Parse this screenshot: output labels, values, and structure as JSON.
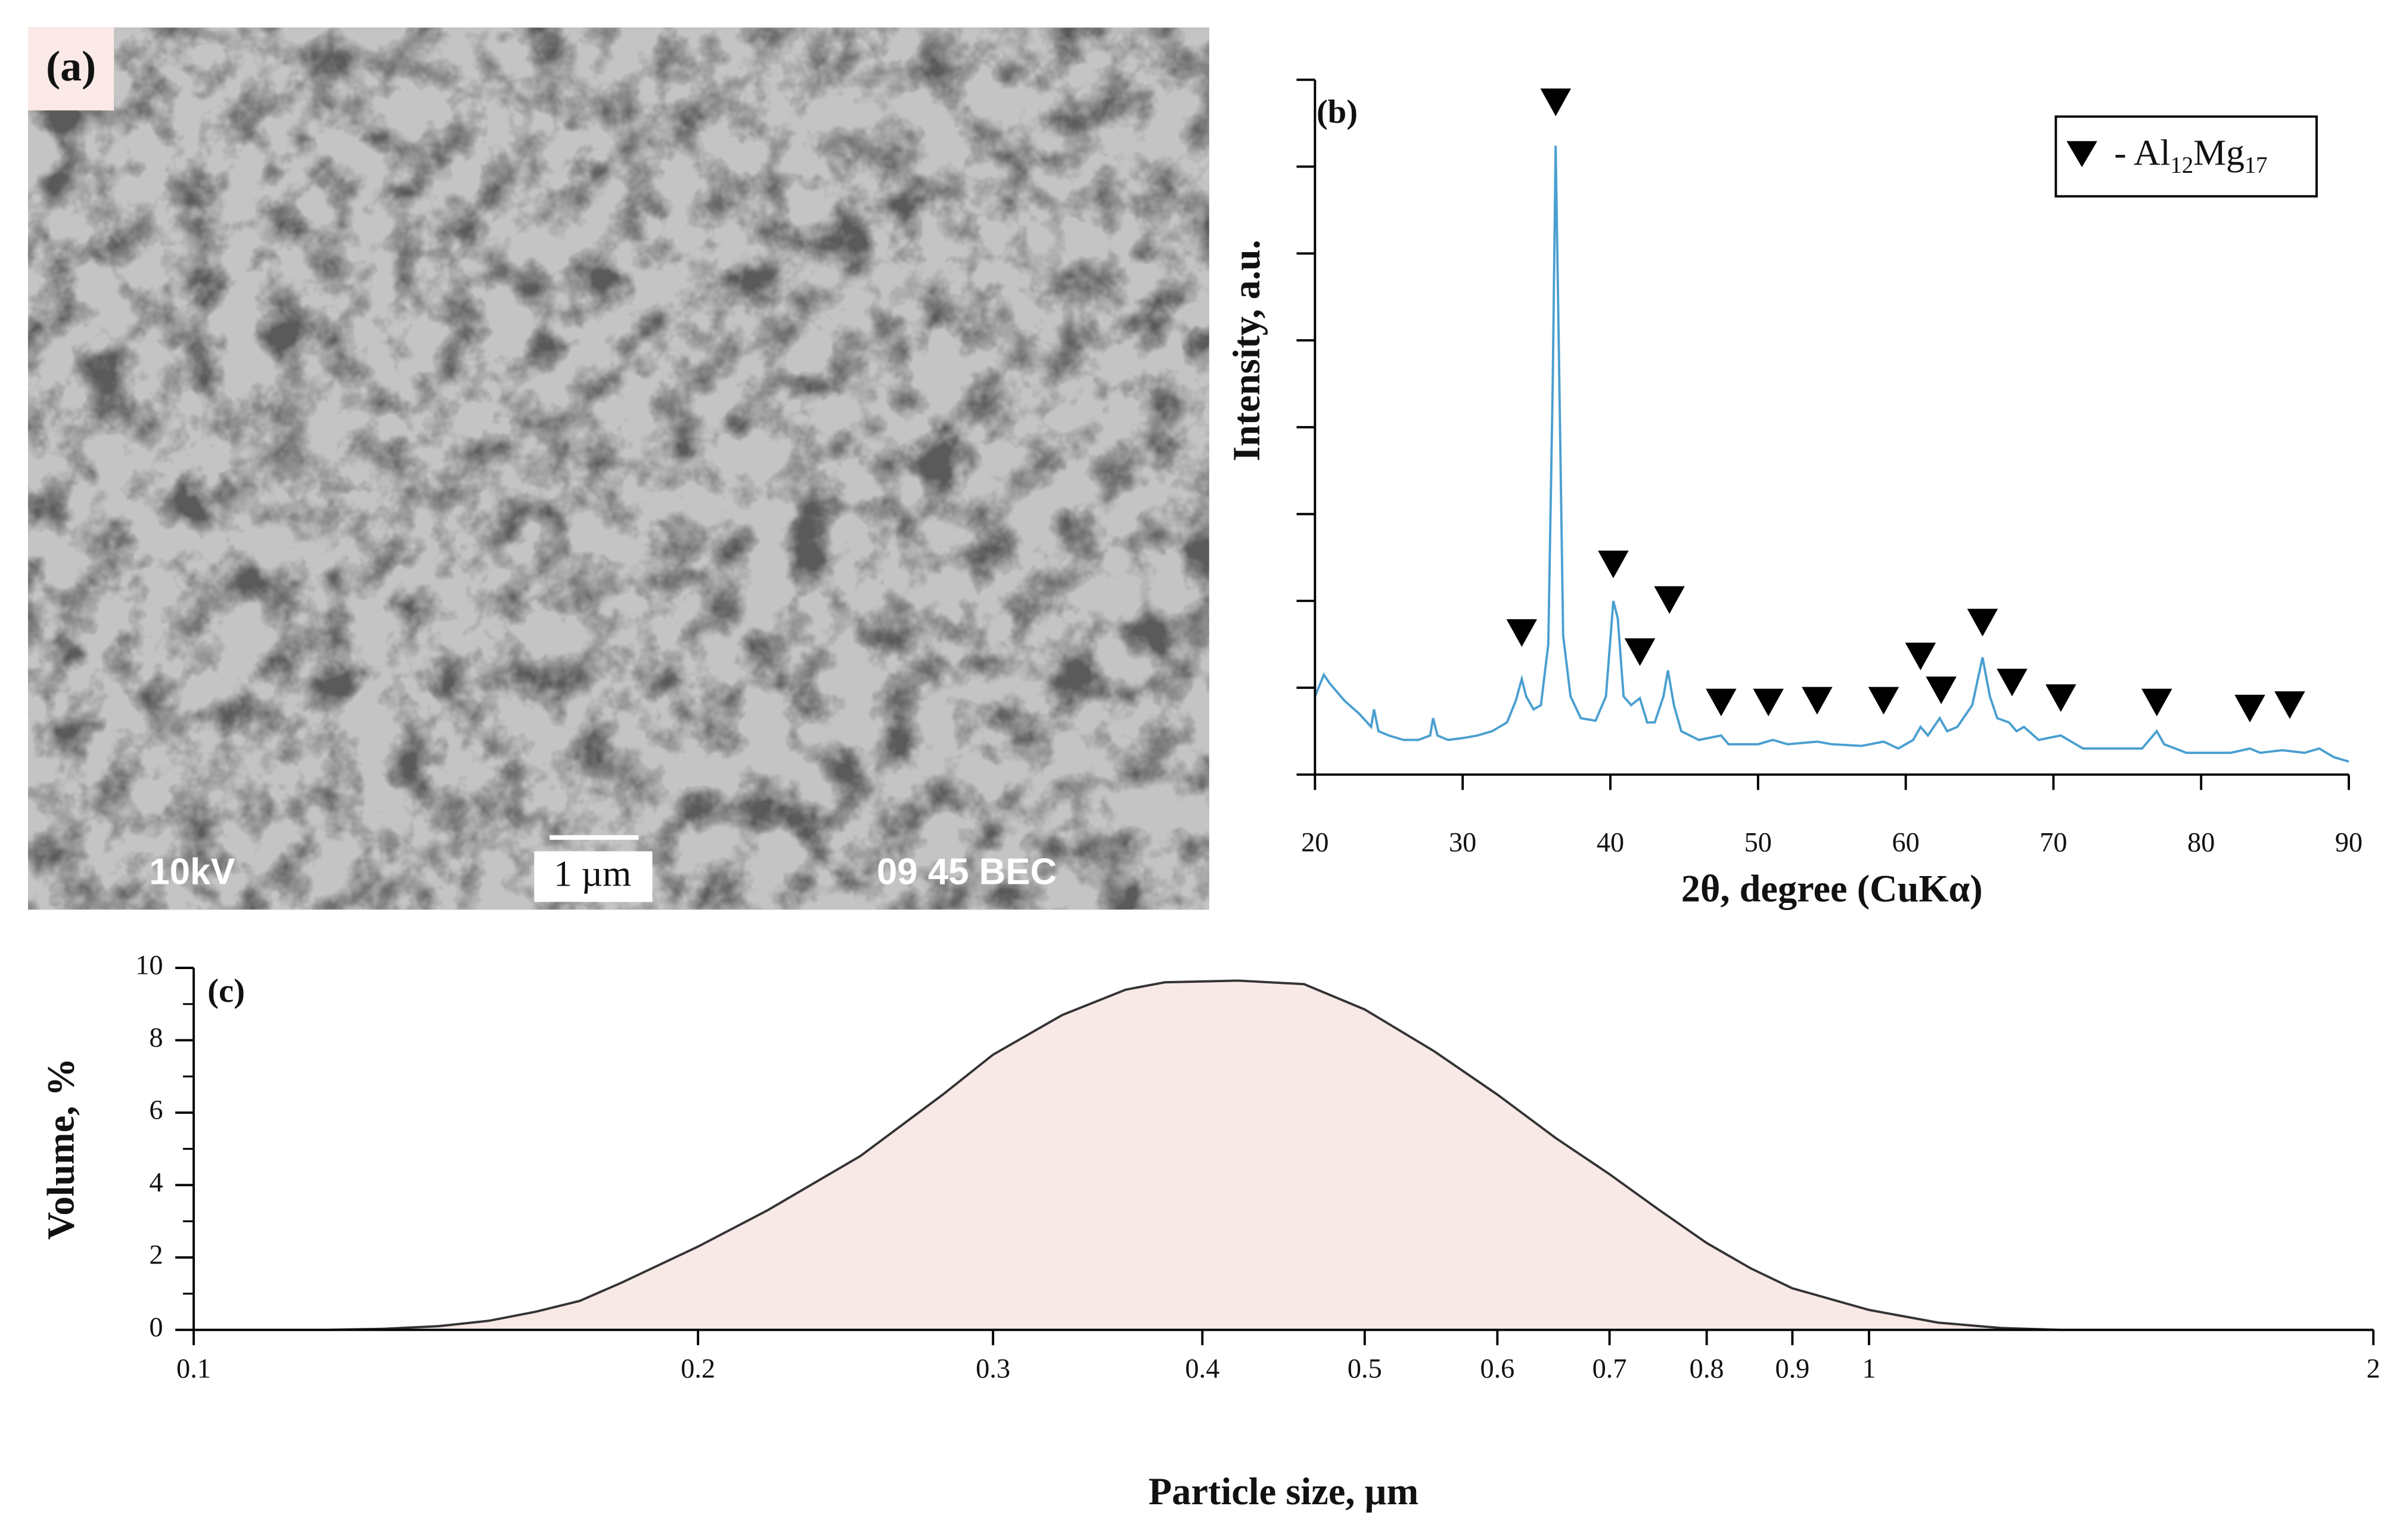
{
  "chart_data": [
    {
      "type": "image",
      "panel_label": "(a)",
      "annotations": [
        "10kV",
        "1 µm",
        "09 45 BEC"
      ]
    },
    {
      "type": "line",
      "panel_label": "(b)",
      "xlabel": "2θ, degree (CuKα)",
      "ylabel": "Intensity, a.u.",
      "xlim": [
        20,
        90
      ],
      "xticks": [
        20,
        30,
        40,
        50,
        60,
        70,
        80,
        90
      ],
      "ylim": [
        0,
        8
      ],
      "yticks": [
        0,
        1,
        2,
        3,
        4,
        5,
        6,
        7,
        8
      ],
      "ytick_labels": false,
      "x": [
        20,
        20.6,
        21,
        22,
        23,
        23.8,
        24,
        24.3,
        25,
        26,
        27,
        27.8,
        28,
        28.3,
        29,
        30,
        31,
        32,
        33,
        33.6,
        34,
        34.3,
        34.8,
        35.3,
        35.8,
        36.1,
        36.3,
        36.5,
        36.8,
        37.3,
        38,
        39,
        39.7,
        40.2,
        40.5,
        40.9,
        41.4,
        42,
        42.5,
        43,
        43.6,
        43.9,
        44.3,
        44.8,
        46,
        47.5,
        48,
        50,
        51,
        52,
        54,
        55,
        57,
        58.5,
        59.5,
        60.5,
        61,
        61.5,
        62.3,
        62.8,
        63.5,
        64.5,
        65.2,
        65.7,
        66.2,
        67,
        67.5,
        68,
        69,
        70.5,
        72,
        74,
        76,
        77,
        77.5,
        79,
        82,
        83.3,
        84,
        85.5,
        87,
        88,
        89,
        90
      ],
      "series": [
        {
          "color": "#4a9fd0",
          "values": [
            0.9,
            1.15,
            1.05,
            0.85,
            0.7,
            0.55,
            0.75,
            0.5,
            0.45,
            0.4,
            0.4,
            0.45,
            0.65,
            0.45,
            0.4,
            0.42,
            0.45,
            0.5,
            0.6,
            0.85,
            1.1,
            0.9,
            0.75,
            0.8,
            1.5,
            4.5,
            7.24,
            5.0,
            1.6,
            0.9,
            0.65,
            0.62,
            0.9,
            2.0,
            1.8,
            0.9,
            0.8,
            0.88,
            0.6,
            0.6,
            0.9,
            1.2,
            0.8,
            0.5,
            0.4,
            0.45,
            0.35,
            0.35,
            0.4,
            0.35,
            0.38,
            0.35,
            0.33,
            0.38,
            0.3,
            0.4,
            0.55,
            0.45,
            0.65,
            0.5,
            0.55,
            0.8,
            1.35,
            0.9,
            0.65,
            0.6,
            0.5,
            0.55,
            0.4,
            0.45,
            0.3,
            0.3,
            0.3,
            0.5,
            0.35,
            0.25,
            0.25,
            0.3,
            0.25,
            0.28,
            0.25,
            0.3,
            0.2,
            0.15
          ]
        }
      ],
      "markers": {
        "x": [
          34,
          36.3,
          40.2,
          42,
          44,
          47.5,
          50.7,
          54,
          58.5,
          61,
          62.4,
          65.2,
          67.2,
          70.5,
          77,
          83.3,
          86
        ],
        "y": [
          1.63,
          7.74,
          2.42,
          1.41,
          2.01,
          0.83,
          0.83,
          0.85,
          0.85,
          1.36,
          0.97,
          1.75,
          1.06,
          0.88,
          0.83,
          0.76,
          0.8
        ],
        "color": "#000000"
      },
      "legend_label": [
        "- Al",
        "12",
        "Mg",
        "17"
      ],
      "legend_position": "upper right"
    },
    {
      "type": "area",
      "panel_label": "(c)",
      "xlabel": "Particle size, µm",
      "ylabel": "Volume, %",
      "xscale": "log",
      "xlim": [
        0.1,
        2
      ],
      "xticks": [
        0.1,
        0.2,
        0.3,
        0.4,
        0.5,
        0.6,
        0.7,
        0.8,
        0.9,
        1,
        2
      ],
      "ylim": [
        0,
        10
      ],
      "yticks": [
        0,
        2,
        4,
        6,
        8,
        10
      ],
      "yminor": [
        1,
        3,
        5,
        7,
        9
      ],
      "x": [
        0.1,
        0.12,
        0.13,
        0.14,
        0.15,
        0.16,
        0.17,
        0.18,
        0.2,
        0.22,
        0.25,
        0.28,
        0.3,
        0.33,
        0.36,
        0.38,
        0.42,
        0.46,
        0.5,
        0.55,
        0.6,
        0.65,
        0.7,
        0.75,
        0.8,
        0.85,
        0.9,
        1.0,
        1.1,
        1.2,
        1.3,
        2
      ],
      "series": [
        {
          "color": "#f8e8e6",
          "line_color": "#333333",
          "values": [
            0,
            0,
            0.03,
            0.1,
            0.25,
            0.5,
            0.8,
            1.3,
            2.3,
            3.3,
            4.8,
            6.5,
            7.6,
            8.7,
            9.4,
            9.6,
            9.65,
            9.55,
            8.85,
            7.7,
            6.5,
            5.3,
            4.3,
            3.3,
            2.4,
            1.7,
            1.15,
            0.55,
            0.2,
            0.05,
            0,
            0
          ]
        }
      ]
    }
  ]
}
